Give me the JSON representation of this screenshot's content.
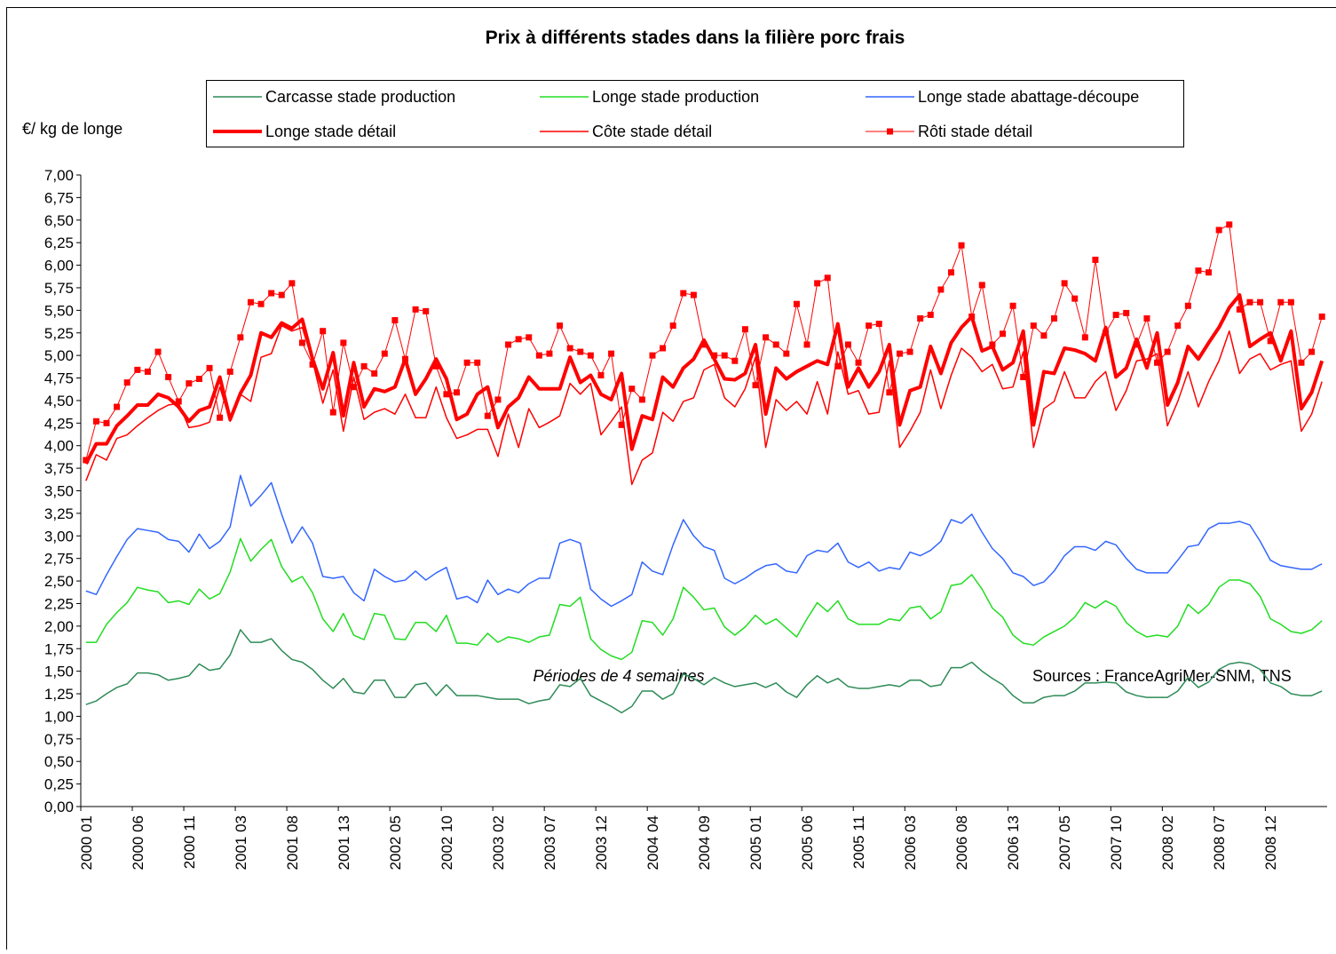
{
  "chart_data": {
    "type": "line",
    "title": "Prix à différents stades dans la filière porc frais",
    "y_label": "€/ kg de longe",
    "x_label": "Périodes de 4 semaines",
    "source": "Sources : FranceAgriMer-SNM, TNS",
    "ylim": [
      0,
      7
    ],
    "yticks": [
      {
        "value": 0,
        "label": "0,00"
      },
      {
        "value": 0.25,
        "label": "0,25"
      },
      {
        "value": 0.5,
        "label": "0,50"
      },
      {
        "value": 0.75,
        "label": "0,75"
      },
      {
        "value": 1,
        "label": "1,00"
      },
      {
        "value": 1.25,
        "label": "1,25"
      },
      {
        "value": 1.5,
        "label": "1,50"
      },
      {
        "value": 1.75,
        "label": "1,75"
      },
      {
        "value": 2,
        "label": "2,00"
      },
      {
        "value": 2.25,
        "label": "2,25"
      },
      {
        "value": 2.5,
        "label": "2,50"
      },
      {
        "value": 2.75,
        "label": "2,75"
      },
      {
        "value": 3,
        "label": "3,00"
      },
      {
        "value": 3.25,
        "label": "3,25"
      },
      {
        "value": 3.5,
        "label": "3,50"
      },
      {
        "value": 3.75,
        "label": "3,75"
      },
      {
        "value": 4,
        "label": "4,00"
      },
      {
        "value": 4.25,
        "label": "4,25"
      },
      {
        "value": 4.5,
        "label": "4,50"
      },
      {
        "value": 4.75,
        "label": "4,75"
      },
      {
        "value": 5,
        "label": "5,00"
      },
      {
        "value": 5.25,
        "label": "5,25"
      },
      {
        "value": 5.5,
        "label": "5,50"
      },
      {
        "value": 5.75,
        "label": "5,75"
      },
      {
        "value": 6,
        "label": "6,00"
      },
      {
        "value": 6.25,
        "label": "6,25"
      },
      {
        "value": 6.5,
        "label": "6,50"
      },
      {
        "value": 6.75,
        "label": "6,75"
      },
      {
        "value": 7,
        "label": "7,00"
      }
    ],
    "grid": false,
    "categories": [
      "2000 01",
      null,
      null,
      null,
      null,
      "2000 06",
      null,
      null,
      null,
      null,
      "2000 11",
      null,
      null,
      null,
      null,
      "2001 03",
      null,
      null,
      null,
      null,
      "2001 08",
      null,
      null,
      null,
      null,
      "2001 13",
      null,
      null,
      null,
      null,
      "2002 05",
      null,
      null,
      null,
      null,
      "2002 10",
      null,
      null,
      null,
      null,
      "2003 02",
      null,
      null,
      null,
      null,
      "2003 07",
      null,
      null,
      null,
      null,
      "2003 12",
      null,
      null,
      null,
      null,
      "2004 04",
      null,
      null,
      null,
      null,
      "2004 09",
      null,
      null,
      null,
      null,
      "2005 01",
      null,
      null,
      null,
      null,
      "2005 06",
      null,
      null,
      null,
      null,
      "2005 11",
      null,
      null,
      null,
      null,
      "2006 03",
      null,
      null,
      null,
      null,
      "2006 08",
      null,
      null,
      null,
      null,
      "2006 13",
      null,
      null,
      null,
      null,
      "2007 05",
      null,
      null,
      null,
      null,
      "2007 10",
      null,
      null,
      null,
      null,
      "2008 02",
      null,
      null,
      null,
      null,
      "2008 07",
      null,
      null,
      null,
      null,
      "2008 12",
      null,
      null,
      null,
      null,
      null
    ],
    "series": [
      {
        "name": "Carcasse stade production",
        "color": "#2e8b57",
        "line_width": 1.5,
        "values": [
          1.13,
          1.17,
          1.25,
          1.32,
          1.36,
          1.48,
          1.48,
          1.46,
          1.4,
          1.42,
          1.45,
          1.58,
          1.51,
          1.53,
          1.68,
          1.96,
          1.82,
          1.82,
          1.86,
          1.73,
          1.63,
          1.6,
          1.52,
          1.4,
          1.31,
          1.42,
          1.27,
          1.25,
          1.4,
          1.4,
          1.21,
          1.21,
          1.35,
          1.37,
          1.23,
          1.35,
          1.23,
          1.23,
          1.23,
          1.21,
          1.19,
          1.19,
          1.19,
          1.14,
          1.17,
          1.19,
          1.35,
          1.33,
          1.42,
          1.23,
          1.17,
          1.11,
          1.04,
          1.11,
          1.28,
          1.28,
          1.19,
          1.25,
          1.47,
          1.42,
          1.35,
          1.43,
          1.37,
          1.33,
          1.35,
          1.37,
          1.32,
          1.37,
          1.27,
          1.21,
          1.35,
          1.45,
          1.37,
          1.42,
          1.33,
          1.31,
          1.31,
          1.33,
          1.35,
          1.33,
          1.4,
          1.4,
          1.33,
          1.35,
          1.54,
          1.54,
          1.6,
          1.5,
          1.42,
          1.35,
          1.23,
          1.15,
          1.15,
          1.21,
          1.23,
          1.23,
          1.28,
          1.37,
          1.37,
          1.38,
          1.37,
          1.27,
          1.23,
          1.21,
          1.21,
          1.21,
          1.28,
          1.43,
          1.32,
          1.38,
          1.52,
          1.58,
          1.6,
          1.58,
          1.52,
          1.37,
          1.33,
          1.25,
          1.23,
          1.23,
          1.28
        ]
      },
      {
        "name": "Longe stade production",
        "color": "#22dd22",
        "line_width": 1.5,
        "values": [
          1.82,
          1.82,
          2.02,
          2.15,
          2.26,
          2.43,
          2.4,
          2.38,
          2.26,
          2.28,
          2.24,
          2.41,
          2.3,
          2.36,
          2.6,
          2.97,
          2.72,
          2.85,
          2.96,
          2.66,
          2.49,
          2.55,
          2.37,
          2.08,
          1.94,
          2.14,
          1.9,
          1.85,
          2.14,
          2.12,
          1.86,
          1.85,
          2.04,
          2.04,
          1.94,
          2.12,
          1.81,
          1.81,
          1.79,
          1.92,
          1.82,
          1.88,
          1.86,
          1.82,
          1.88,
          1.9,
          2.24,
          2.22,
          2.32,
          1.86,
          1.74,
          1.67,
          1.63,
          1.71,
          2.06,
          2.04,
          1.9,
          2.08,
          2.43,
          2.32,
          2.18,
          2.2,
          1.99,
          1.9,
          1.99,
          2.12,
          2.02,
          2.08,
          1.98,
          1.88,
          2.08,
          2.26,
          2.16,
          2.28,
          2.08,
          2.02,
          2.02,
          2.02,
          2.08,
          2.06,
          2.2,
          2.22,
          2.08,
          2.16,
          2.45,
          2.47,
          2.57,
          2.41,
          2.2,
          2.1,
          1.9,
          1.81,
          1.79,
          1.88,
          1.94,
          2.0,
          2.1,
          2.26,
          2.2,
          2.28,
          2.22,
          2.04,
          1.94,
          1.88,
          1.9,
          1.88,
          2.0,
          2.24,
          2.14,
          2.24,
          2.43,
          2.51,
          2.51,
          2.47,
          2.33,
          2.08,
          2.02,
          1.94,
          1.92,
          1.96,
          2.06
        ]
      },
      {
        "name": "Longe stade abattage-découpe",
        "color": "#3366ff",
        "line_width": 1.5,
        "values": [
          2.39,
          2.35,
          2.57,
          2.77,
          2.96,
          3.08,
          3.06,
          3.04,
          2.96,
          2.94,
          2.82,
          3.02,
          2.86,
          2.94,
          3.1,
          3.67,
          3.33,
          3.45,
          3.59,
          3.24,
          2.92,
          3.1,
          2.92,
          2.55,
          2.53,
          2.55,
          2.37,
          2.28,
          2.63,
          2.55,
          2.49,
          2.51,
          2.61,
          2.51,
          2.59,
          2.65,
          2.3,
          2.33,
          2.26,
          2.51,
          2.35,
          2.41,
          2.37,
          2.47,
          2.53,
          2.53,
          2.92,
          2.96,
          2.92,
          2.41,
          2.3,
          2.22,
          2.28,
          2.35,
          2.71,
          2.61,
          2.57,
          2.9,
          3.18,
          3.0,
          2.88,
          2.84,
          2.53,
          2.47,
          2.53,
          2.61,
          2.67,
          2.69,
          2.61,
          2.59,
          2.78,
          2.84,
          2.82,
          2.92,
          2.71,
          2.65,
          2.71,
          2.61,
          2.65,
          2.63,
          2.82,
          2.78,
          2.84,
          2.94,
          3.18,
          3.14,
          3.24,
          3.04,
          2.86,
          2.75,
          2.59,
          2.55,
          2.45,
          2.49,
          2.61,
          2.78,
          2.88,
          2.88,
          2.84,
          2.94,
          2.9,
          2.75,
          2.63,
          2.59,
          2.59,
          2.59,
          2.73,
          2.88,
          2.9,
          3.08,
          3.14,
          3.14,
          3.16,
          3.12,
          2.94,
          2.73,
          2.67,
          2.65,
          2.63,
          2.63,
          2.69
        ]
      },
      {
        "name": "Longe stade détail",
        "color": "#ff0000",
        "line_width": 4,
        "values": [
          3.8,
          4.02,
          4.02,
          4.22,
          4.33,
          4.45,
          4.45,
          4.57,
          4.53,
          4.43,
          4.27,
          4.39,
          4.43,
          4.76,
          4.29,
          4.58,
          4.78,
          5.25,
          5.2,
          5.36,
          5.3,
          5.4,
          4.96,
          4.63,
          5.03,
          4.33,
          4.92,
          4.43,
          4.63,
          4.6,
          4.65,
          4.96,
          4.57,
          4.74,
          4.96,
          4.74,
          4.29,
          4.35,
          4.57,
          4.65,
          4.2,
          4.43,
          4.53,
          4.76,
          4.63,
          4.63,
          4.63,
          4.98,
          4.7,
          4.78,
          4.57,
          4.51,
          4.8,
          3.96,
          4.33,
          4.29,
          4.76,
          4.65,
          4.86,
          4.96,
          5.17,
          4.96,
          4.74,
          4.73,
          4.8,
          5.12,
          4.35,
          4.86,
          4.74,
          4.82,
          4.88,
          4.94,
          4.9,
          5.35,
          4.65,
          4.86,
          4.65,
          4.82,
          5.12,
          4.23,
          4.61,
          4.65,
          5.1,
          4.8,
          5.14,
          5.31,
          5.43,
          5.05,
          5.1,
          4.84,
          4.92,
          5.27,
          4.23,
          4.82,
          4.8,
          5.08,
          5.06,
          5.02,
          4.94,
          5.31,
          4.76,
          4.86,
          5.18,
          4.86,
          5.25,
          4.45,
          4.7,
          5.1,
          4.96,
          5.14,
          5.31,
          5.53,
          5.67,
          5.1,
          5.18,
          5.25,
          4.94,
          5.27,
          4.41,
          4.59,
          4.94
        ]
      },
      {
        "name": "Côte stade détail",
        "color": "#ff0000",
        "line_width": 1.5,
        "values": [
          3.61,
          3.9,
          3.84,
          4.08,
          4.12,
          4.22,
          4.31,
          4.39,
          4.45,
          4.47,
          4.2,
          4.22,
          4.26,
          4.65,
          4.27,
          4.57,
          4.49,
          4.98,
          5.02,
          5.33,
          5.27,
          5.31,
          4.94,
          4.47,
          4.84,
          4.16,
          4.76,
          4.29,
          4.37,
          4.41,
          4.35,
          4.57,
          4.31,
          4.31,
          4.65,
          4.31,
          4.08,
          4.12,
          4.18,
          4.18,
          3.88,
          4.35,
          3.98,
          4.41,
          4.2,
          4.26,
          4.33,
          4.69,
          4.57,
          4.69,
          4.12,
          4.27,
          4.43,
          3.57,
          3.84,
          3.92,
          4.37,
          4.27,
          4.49,
          4.53,
          4.84,
          4.9,
          4.53,
          4.43,
          4.63,
          4.98,
          3.98,
          4.51,
          4.39,
          4.49,
          4.35,
          4.71,
          4.35,
          5.04,
          4.57,
          4.61,
          4.35,
          4.37,
          4.94,
          3.98,
          4.16,
          4.37,
          4.84,
          4.41,
          4.78,
          5.08,
          4.98,
          4.82,
          4.9,
          4.63,
          4.65,
          5.04,
          3.98,
          4.41,
          4.49,
          4.82,
          4.53,
          4.53,
          4.71,
          4.82,
          4.39,
          4.61,
          4.94,
          4.96,
          5.02,
          4.22,
          4.49,
          4.82,
          4.43,
          4.71,
          4.94,
          5.27,
          4.8,
          4.96,
          5.02,
          4.84,
          4.9,
          4.94,
          4.16,
          4.35,
          4.71
        ]
      },
      {
        "name": "Rôti stade détail",
        "color": "#ff0000",
        "line_width": 1,
        "marker": "square",
        "values": [
          3.84,
          4.27,
          4.25,
          4.43,
          4.7,
          4.84,
          4.82,
          5.04,
          4.76,
          4.49,
          4.69,
          4.74,
          4.86,
          4.31,
          4.82,
          5.2,
          5.59,
          5.57,
          5.69,
          5.67,
          5.8,
          5.14,
          4.9,
          5.27,
          4.37,
          5.14,
          4.65,
          4.88,
          4.8,
          5.02,
          5.39,
          4.96,
          5.51,
          5.49,
          4.88,
          4.57,
          4.59,
          4.92,
          4.92,
          4.33,
          4.51,
          5.12,
          5.18,
          5.2,
          5.0,
          5.02,
          5.33,
          5.08,
          5.04,
          5.0,
          4.78,
          5.02,
          4.23,
          4.63,
          4.51,
          5.0,
          5.08,
          5.33,
          5.69,
          5.67,
          5.12,
          5.0,
          5.0,
          4.94,
          5.29,
          4.67,
          5.2,
          5.12,
          5.02,
          5.57,
          5.12,
          5.8,
          5.86,
          4.88,
          5.12,
          4.92,
          5.33,
          5.35,
          4.59,
          5.02,
          5.04,
          5.41,
          5.45,
          5.73,
          5.92,
          6.22,
          5.43,
          5.78,
          5.12,
          5.24,
          5.55,
          4.76,
          5.33,
          5.22,
          5.41,
          5.8,
          5.63,
          5.2,
          6.06,
          5.25,
          5.45,
          5.47,
          5.12,
          5.41,
          4.92,
          5.04,
          5.33,
          5.55,
          5.94,
          5.92,
          6.39,
          6.45,
          5.51,
          5.59,
          5.59,
          5.16,
          5.59,
          5.59,
          4.92,
          5.04,
          5.43
        ]
      }
    ]
  }
}
